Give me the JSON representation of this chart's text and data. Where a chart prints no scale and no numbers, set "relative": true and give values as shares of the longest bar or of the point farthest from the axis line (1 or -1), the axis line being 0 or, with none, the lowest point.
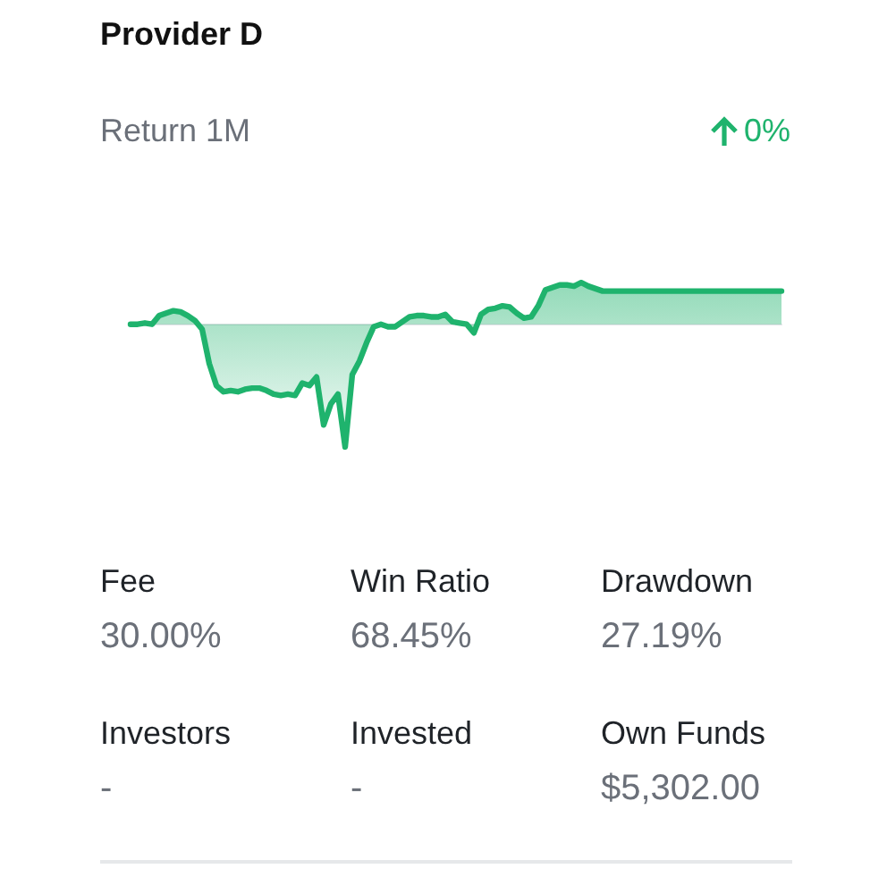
{
  "chart_data": [
    {
      "type": "area",
      "title": "Provider D",
      "subtitle": "Return 1M",
      "annotations": [
        "0%"
      ],
      "color": "#1fb36d",
      "relative": true,
      "categories": [
        null,
        null,
        null,
        null,
        null,
        null,
        null,
        null,
        null,
        null,
        null,
        null,
        null,
        null,
        null,
        null,
        null,
        null,
        null,
        null,
        null,
        null,
        null,
        null,
        null,
        null,
        null,
        null,
        null,
        null,
        null,
        null,
        null,
        null,
        null,
        null,
        null,
        null,
        null,
        null,
        null,
        null,
        null,
        null,
        null,
        null,
        null,
        null,
        null,
        null,
        null,
        null,
        null,
        null,
        null,
        null,
        null,
        null,
        null,
        null,
        null,
        null,
        null,
        null,
        null,
        null,
        null,
        null,
        null,
        null,
        null,
        null,
        null,
        null,
        null,
        null,
        null,
        null,
        null,
        null,
        null,
        null,
        null,
        null,
        null,
        null,
        null,
        null,
        null,
        null,
        null,
        null
      ],
      "values": [
        0,
        0,
        0.01,
        0,
        0.07,
        0.09,
        0.11,
        0.1,
        0.07,
        0.03,
        -0.04,
        -0.32,
        -0.5,
        -0.55,
        -0.54,
        -0.55,
        -0.53,
        -0.52,
        -0.52,
        -0.54,
        -0.57,
        -0.58,
        -0.57,
        -0.58,
        -0.48,
        -0.5,
        -0.43,
        -0.82,
        -0.65,
        -0.57,
        -1,
        -0.41,
        -0.3,
        -0.15,
        -0.02,
        0,
        -0.02,
        -0.02,
        0.02,
        0.06,
        0.07,
        0.07,
        0.06,
        0.06,
        0.08,
        0.02,
        0.01,
        0,
        -0.07,
        0.08,
        0.12,
        0.13,
        0.15,
        0.14,
        0.09,
        0.05,
        0.06,
        0.15,
        0.28,
        0.3,
        0.32,
        0.32,
        0.31,
        0.34,
        0.31,
        0.29,
        0.27,
        0.27,
        0.27,
        0.27,
        0.27,
        0.27,
        0.27,
        0.27,
        0.27,
        0.27,
        0.27,
        0.27,
        0.27,
        0.27,
        0.27,
        0.27,
        0.27,
        0.27,
        0.27,
        0.27,
        0.27,
        0.27,
        0.27,
        0.27,
        0.27,
        0.27
      ]
    },
    {
      "type": "other",
      "annotations": [
        "Fee",
        "30.00%",
        "Win Ratio",
        "68.45%",
        "Drawdown",
        "27.19%",
        "Investors",
        "-",
        "Invested",
        "-",
        "Own Funds",
        "$5,302.00"
      ]
    }
  ]
}
